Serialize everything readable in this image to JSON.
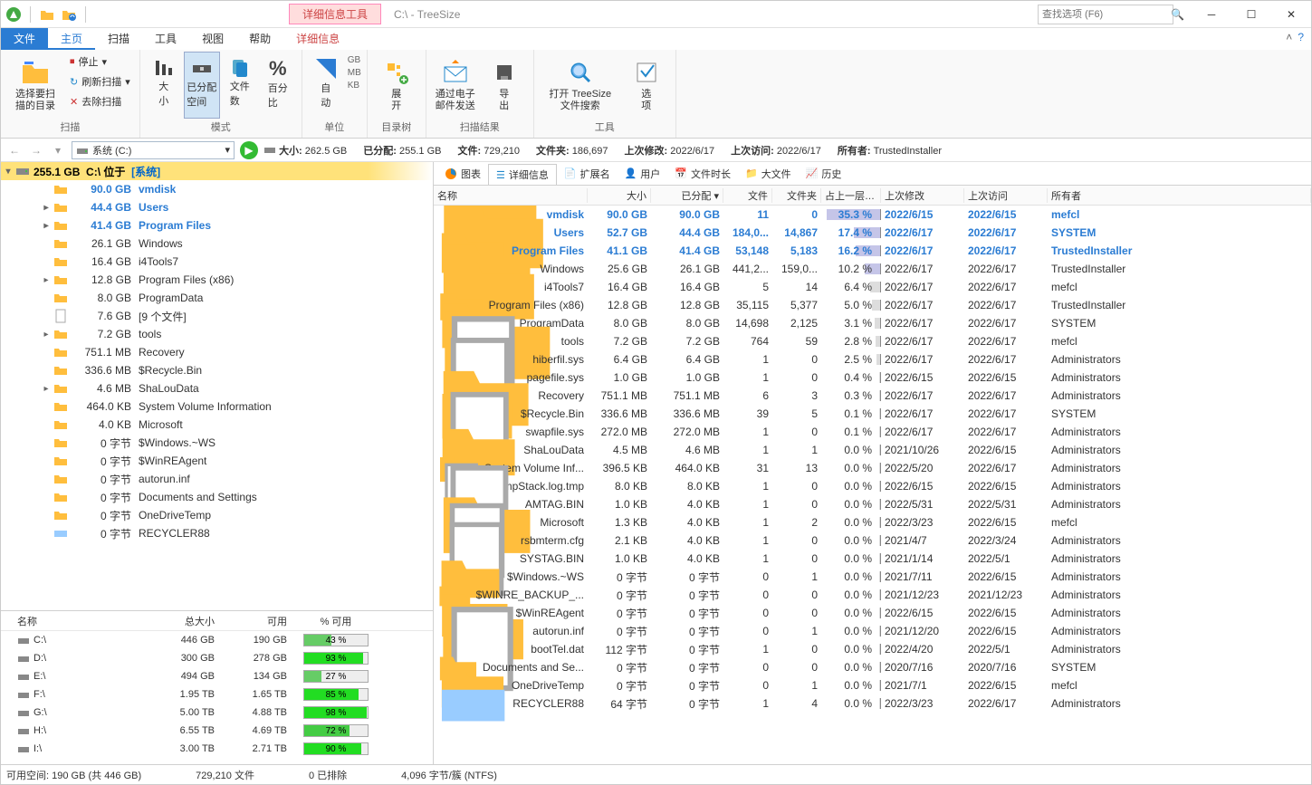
{
  "title": "C:\\ - TreeSize",
  "context_tab": "详细信息工具",
  "search_placeholder": "查找选项 (F6)",
  "tabs": {
    "file": "文件",
    "home": "主页",
    "scan": "扫描",
    "tools": "工具",
    "view": "视图",
    "help": "帮助",
    "detail": "详细信息"
  },
  "ribbon": {
    "scan_group": "扫描",
    "select_dir": "选择要扫\n描的目录",
    "stop": "停止",
    "refresh": "刷新扫描",
    "remove": "去除扫描",
    "mode_group": "模式",
    "size_big": "大\n小",
    "allocated": "已分配\n空间",
    "file_count": "文件\n数",
    "percent": "百分\n比",
    "unit_group": "单位",
    "auto": "自\n动",
    "gb": "GB",
    "mb": "MB",
    "kb": "KB",
    "tree_group": "目录树",
    "expand": "展\n开",
    "results_group": "扫描结果",
    "email": "通过电子\n邮件发送",
    "export": "导\n出",
    "tools_group": "工具",
    "file_search": "打开 TreeSize\n文件搜索",
    "options": "选\n项"
  },
  "nav": {
    "drive_label": "系统 (C:)",
    "size_label": "大小:",
    "size_val": "262.5 GB",
    "alloc_label": "已分配:",
    "alloc_val": "255.1 GB",
    "files_label": "文件:",
    "files_val": "729,210",
    "dirs_label": "文件夹:",
    "dirs_val": "186,697",
    "mod_label": "上次修改:",
    "mod_val": "2022/6/17",
    "acc_label": "上次访问:",
    "acc_val": "2022/6/17",
    "own_label": "所有者:",
    "own_val": "TrustedInstaller"
  },
  "root": {
    "size": "255.1 GB",
    "path": "C:\\",
    "loc": "位于",
    "sys": "[系统]"
  },
  "tree": [
    {
      "i": 1,
      "c": "",
      "t": "f",
      "s": "90.0 GB",
      "n": "vmdisk",
      "hl": true
    },
    {
      "i": 1,
      "c": "r",
      "t": "f",
      "s": "44.4 GB",
      "n": "Users",
      "hl": true
    },
    {
      "i": 1,
      "c": "r",
      "t": "f",
      "s": "41.4 GB",
      "n": "Program Files",
      "hl": true
    },
    {
      "i": 1,
      "c": "",
      "t": "f",
      "s": "26.1 GB",
      "n": "Windows"
    },
    {
      "i": 1,
      "c": "",
      "t": "f",
      "s": "16.4 GB",
      "n": "i4Tools7"
    },
    {
      "i": 1,
      "c": "r",
      "t": "f",
      "s": "12.8 GB",
      "n": "Program Files (x86)"
    },
    {
      "i": 1,
      "c": "",
      "t": "f",
      "s": "8.0 GB",
      "n": "ProgramData"
    },
    {
      "i": 1,
      "c": "",
      "t": "file",
      "s": "7.6 GB",
      "n": "[9 个文件]"
    },
    {
      "i": 1,
      "c": "r",
      "t": "f",
      "s": "7.2 GB",
      "n": "tools"
    },
    {
      "i": 1,
      "c": "",
      "t": "f",
      "s": "751.1 MB",
      "n": "Recovery"
    },
    {
      "i": 1,
      "c": "",
      "t": "f",
      "s": "336.6 MB",
      "n": "$Recycle.Bin"
    },
    {
      "i": 1,
      "c": "r",
      "t": "f",
      "s": "4.6 MB",
      "n": "ShaLouData"
    },
    {
      "i": 1,
      "c": "",
      "t": "f",
      "s": "464.0 KB",
      "n": "System Volume Information"
    },
    {
      "i": 1,
      "c": "",
      "t": "f",
      "s": "4.0 KB",
      "n": "Microsoft"
    },
    {
      "i": 1,
      "c": "",
      "t": "f",
      "s": "0 字节",
      "n": "$Windows.~WS"
    },
    {
      "i": 1,
      "c": "",
      "t": "f",
      "s": "0 字节",
      "n": "$WinREAgent"
    },
    {
      "i": 1,
      "c": "",
      "t": "f",
      "s": "0 字节",
      "n": "autorun.inf"
    },
    {
      "i": 1,
      "c": "",
      "t": "f",
      "s": "0 字节",
      "n": "Documents and Settings"
    },
    {
      "i": 1,
      "c": "",
      "t": "f",
      "s": "0 字节",
      "n": "OneDriveTemp"
    },
    {
      "i": 1,
      "c": "",
      "t": "d",
      "s": "0 字节",
      "n": "RECYCLER88"
    }
  ],
  "drives_hdr": {
    "name": "名称",
    "total": "总大小",
    "avail": "可用",
    "pct": "% 可用"
  },
  "drives": [
    {
      "n": "C:\\",
      "t": "446 GB",
      "a": "190 GB",
      "p": 43,
      "c": "#6c6"
    },
    {
      "n": "D:\\",
      "t": "300 GB",
      "a": "278 GB",
      "p": 93,
      "c": "#2d2"
    },
    {
      "n": "E:\\",
      "t": "494 GB",
      "a": "134 GB",
      "p": 27,
      "c": "#6c6"
    },
    {
      "n": "F:\\",
      "t": "1.95 TB",
      "a": "1.65 TB",
      "p": 85,
      "c": "#2d2"
    },
    {
      "n": "G:\\",
      "t": "5.00 TB",
      "a": "4.88 TB",
      "p": 98,
      "c": "#2d2"
    },
    {
      "n": "H:\\",
      "t": "6.55 TB",
      "a": "4.69 TB",
      "p": 72,
      "c": "#4c4"
    },
    {
      "n": "I:\\",
      "t": "3.00 TB",
      "a": "2.71 TB",
      "p": 90,
      "c": "#2d2"
    }
  ],
  "dtabs": {
    "chart": "图表",
    "detail": "详细信息",
    "ext": "扩展名",
    "user": "用户",
    "age": "文件时长",
    "big": "大文件",
    "hist": "历史"
  },
  "dhdr": {
    "name": "名称",
    "size": "大小",
    "alloc": "已分配",
    "files": "文件",
    "dirs": "文件夹",
    "pct": "占上一层 %...",
    "mod": "上次修改",
    "acc": "上次访问",
    "own": "所有者"
  },
  "rows": [
    {
      "t": "f",
      "n": "vmdisk",
      "s": "90.0 GB",
      "a": "90.0 GB",
      "fi": "11",
      "di": "0",
      "p": "35.3 %",
      "pw": 60,
      "pc": "p",
      "m": "2022/6/15",
      "ac": "2022/6/15",
      "o": "mefcl",
      "hl": true
    },
    {
      "t": "f",
      "n": "Users",
      "s": "52.7 GB",
      "a": "44.4 GB",
      "fi": "184,0...",
      "di": "14,867",
      "p": "17.4 %",
      "pw": 30,
      "pc": "p",
      "m": "2022/6/17",
      "ac": "2022/6/17",
      "o": "SYSTEM",
      "hl": true
    },
    {
      "t": "f",
      "n": "Program Files",
      "s": "41.1 GB",
      "a": "41.4 GB",
      "fi": "53,148",
      "di": "5,183",
      "p": "16.2 %",
      "pw": 28,
      "pc": "p",
      "m": "2022/6/17",
      "ac": "2022/6/17",
      "o": "TrustedInstaller",
      "hl": true
    },
    {
      "t": "f",
      "n": "Windows",
      "s": "25.6 GB",
      "a": "26.1 GB",
      "fi": "441,2...",
      "di": "159,0...",
      "p": "10.2 %",
      "pw": 18,
      "pc": "p",
      "m": "2022/6/17",
      "ac": "2022/6/17",
      "o": "TrustedInstaller"
    },
    {
      "t": "f",
      "n": "i4Tools7",
      "s": "16.4 GB",
      "a": "16.4 GB",
      "fi": "5",
      "di": "14",
      "p": "6.4 %",
      "pw": 12,
      "pc": "g",
      "m": "2022/6/17",
      "ac": "2022/6/17",
      "o": "mefcl"
    },
    {
      "t": "f",
      "n": "Program Files (x86)",
      "s": "12.8 GB",
      "a": "12.8 GB",
      "fi": "35,115",
      "di": "5,377",
      "p": "5.0 %",
      "pw": 10,
      "pc": "g",
      "m": "2022/6/17",
      "ac": "2022/6/17",
      "o": "TrustedInstaller"
    },
    {
      "t": "f",
      "n": "ProgramData",
      "s": "8.0 GB",
      "a": "8.0 GB",
      "fi": "14,698",
      "di": "2,125",
      "p": "3.1 %",
      "pw": 7,
      "pc": "g",
      "m": "2022/6/17",
      "ac": "2022/6/17",
      "o": "SYSTEM"
    },
    {
      "t": "f",
      "n": "tools",
      "s": "7.2 GB",
      "a": "7.2 GB",
      "fi": "764",
      "di": "59",
      "p": "2.8 %",
      "pw": 6,
      "pc": "g",
      "m": "2022/6/17",
      "ac": "2022/6/17",
      "o": "mefcl"
    },
    {
      "t": "file",
      "n": "hiberfil.sys",
      "s": "6.4 GB",
      "a": "6.4 GB",
      "fi": "1",
      "di": "0",
      "p": "2.5 %",
      "pw": 5,
      "pc": "g",
      "m": "2022/6/17",
      "ac": "2022/6/17",
      "o": "Administrators"
    },
    {
      "t": "file",
      "n": "pagefile.sys",
      "s": "1.0 GB",
      "a": "1.0 GB",
      "fi": "1",
      "di": "0",
      "p": "0.4 %",
      "pw": 2,
      "pc": "g",
      "m": "2022/6/15",
      "ac": "2022/6/15",
      "o": "Administrators"
    },
    {
      "t": "f",
      "n": "Recovery",
      "s": "751.1 MB",
      "a": "751.1 MB",
      "fi": "6",
      "di": "3",
      "p": "0.3 %",
      "pw": 2,
      "pc": "g",
      "m": "2022/6/17",
      "ac": "2022/6/17",
      "o": "Administrators"
    },
    {
      "t": "f",
      "n": "$Recycle.Bin",
      "s": "336.6 MB",
      "a": "336.6 MB",
      "fi": "39",
      "di": "5",
      "p": "0.1 %",
      "pw": 2,
      "pc": "g",
      "m": "2022/6/17",
      "ac": "2022/6/17",
      "o": "SYSTEM"
    },
    {
      "t": "file",
      "n": "swapfile.sys",
      "s": "272.0 MB",
      "a": "272.0 MB",
      "fi": "1",
      "di": "0",
      "p": "0.1 %",
      "pw": 2,
      "pc": "g",
      "m": "2022/6/17",
      "ac": "2022/6/17",
      "o": "Administrators"
    },
    {
      "t": "f",
      "n": "ShaLouData",
      "s": "4.5 MB",
      "a": "4.6 MB",
      "fi": "1",
      "di": "1",
      "p": "0.0 %",
      "pw": 2,
      "pc": "g",
      "m": "2021/10/26",
      "ac": "2022/6/15",
      "o": "Administrators"
    },
    {
      "t": "f",
      "n": "System Volume Inf...",
      "s": "396.5 KB",
      "a": "464.0 KB",
      "fi": "31",
      "di": "13",
      "p": "0.0 %",
      "pw": 2,
      "pc": "g",
      "m": "2022/5/20",
      "ac": "2022/6/17",
      "o": "Administrators"
    },
    {
      "t": "file",
      "n": "DumpStack.log.tmp",
      "s": "8.0 KB",
      "a": "8.0 KB",
      "fi": "1",
      "di": "0",
      "p": "0.0 %",
      "pw": 2,
      "pc": "g",
      "m": "2022/6/15",
      "ac": "2022/6/15",
      "o": "Administrators"
    },
    {
      "t": "file",
      "n": "AMTAG.BIN",
      "s": "1.0 KB",
      "a": "4.0 KB",
      "fi": "1",
      "di": "0",
      "p": "0.0 %",
      "pw": 2,
      "pc": "g",
      "m": "2022/5/31",
      "ac": "2022/5/31",
      "o": "Administrators"
    },
    {
      "t": "f",
      "n": "Microsoft",
      "s": "1.3 KB",
      "a": "4.0 KB",
      "fi": "1",
      "di": "2",
      "p": "0.0 %",
      "pw": 2,
      "pc": "g",
      "m": "2022/3/23",
      "ac": "2022/6/15",
      "o": "mefcl"
    },
    {
      "t": "file",
      "n": "rsbmterm.cfg",
      "s": "2.1 KB",
      "a": "4.0 KB",
      "fi": "1",
      "di": "0",
      "p": "0.0 %",
      "pw": 2,
      "pc": "g",
      "m": "2021/4/7",
      "ac": "2022/3/24",
      "o": "Administrators"
    },
    {
      "t": "file",
      "n": "SYSTAG.BIN",
      "s": "1.0 KB",
      "a": "4.0 KB",
      "fi": "1",
      "di": "0",
      "p": "0.0 %",
      "pw": 2,
      "pc": "g",
      "m": "2021/1/14",
      "ac": "2022/5/1",
      "o": "Administrators"
    },
    {
      "t": "f",
      "n": "$Windows.~WS",
      "s": "0 字节",
      "a": "0 字节",
      "fi": "0",
      "di": "1",
      "p": "0.0 %",
      "pw": 2,
      "pc": "g",
      "m": "2021/7/11",
      "ac": "2022/6/15",
      "o": "Administrators"
    },
    {
      "t": "f",
      "n": "$WINRE_BACKUP_...",
      "s": "0 字节",
      "a": "0 字节",
      "fi": "0",
      "di": "0",
      "p": "0.0 %",
      "pw": 2,
      "pc": "g",
      "m": "2021/12/23",
      "ac": "2021/12/23",
      "o": "Administrators"
    },
    {
      "t": "f",
      "n": "$WinREAgent",
      "s": "0 字节",
      "a": "0 字节",
      "fi": "0",
      "di": "0",
      "p": "0.0 %",
      "pw": 2,
      "pc": "g",
      "m": "2022/6/15",
      "ac": "2022/6/15",
      "o": "Administrators"
    },
    {
      "t": "f",
      "n": "autorun.inf",
      "s": "0 字节",
      "a": "0 字节",
      "fi": "0",
      "di": "1",
      "p": "0.0 %",
      "pw": 2,
      "pc": "g",
      "m": "2021/12/20",
      "ac": "2022/6/15",
      "o": "Administrators"
    },
    {
      "t": "file",
      "n": "bootTel.dat",
      "s": "112 字节",
      "a": "0 字节",
      "fi": "1",
      "di": "0",
      "p": "0.0 %",
      "pw": 2,
      "pc": "g",
      "m": "2022/4/20",
      "ac": "2022/5/1",
      "o": "Administrators"
    },
    {
      "t": "f",
      "n": "Documents and Se...",
      "s": "0 字节",
      "a": "0 字节",
      "fi": "0",
      "di": "0",
      "p": "0.0 %",
      "pw": 2,
      "pc": "g",
      "m": "2020/7/16",
      "ac": "2020/7/16",
      "o": "SYSTEM"
    },
    {
      "t": "f",
      "n": "OneDriveTemp",
      "s": "0 字节",
      "a": "0 字节",
      "fi": "0",
      "di": "1",
      "p": "0.0 %",
      "pw": 2,
      "pc": "g",
      "m": "2021/7/1",
      "ac": "2022/6/15",
      "o": "mefcl"
    },
    {
      "t": "d",
      "n": "RECYCLER88",
      "s": "64 字节",
      "a": "0 字节",
      "fi": "1",
      "di": "4",
      "p": "0.0 %",
      "pw": 2,
      "pc": "g",
      "m": "2022/3/23",
      "ac": "2022/6/17",
      "o": "Administrators"
    }
  ],
  "status": {
    "free": "可用空间: 190 GB   (共 446 GB)",
    "files": "729,210 文件",
    "excl": "0 已排除",
    "cluster": "4,096 字节/簇 (NTFS)"
  }
}
